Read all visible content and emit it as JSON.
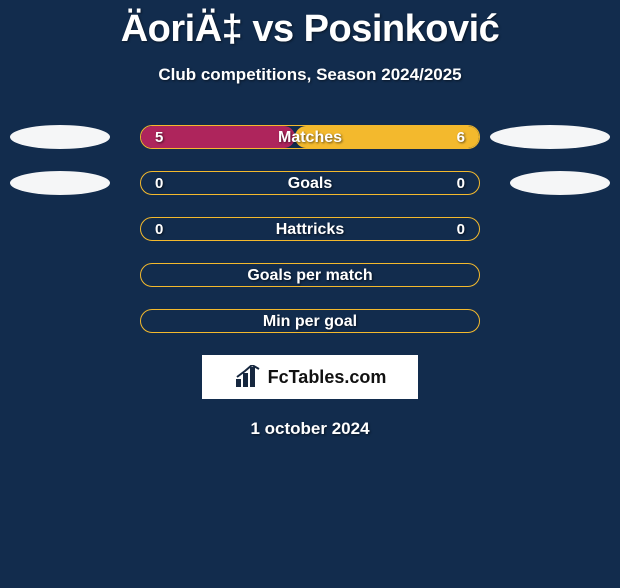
{
  "title": "ÄoriÄ‡ vs Posinković",
  "subtitle": "Club competitions, Season 2024/2025",
  "date_text": "1 october 2024",
  "logo_text": "FcTables.com",
  "colors": {
    "background": "#122c4d",
    "pill_border": "#f3b92d",
    "left_fill": "#ae255c",
    "right_fill": "#f3b92d",
    "ellipse": "#f5f6f7",
    "text": "#ffffff",
    "logo_bg": "#ffffff",
    "logo_text": "#111111",
    "logo_bars": "#16273f"
  },
  "ellipse_base_width": 100,
  "rows": [
    {
      "label": "Matches",
      "left_val": "5",
      "right_val": "6",
      "left_num": 5,
      "right_num": 6,
      "show_values": true,
      "show_ellipses": true,
      "left_ellipse_scale": 1.0,
      "right_ellipse_scale": 1.2
    },
    {
      "label": "Goals",
      "left_val": "0",
      "right_val": "0",
      "left_num": 0,
      "right_num": 0,
      "show_values": true,
      "show_ellipses": true,
      "left_ellipse_scale": 1.0,
      "right_ellipse_scale": 1.0
    },
    {
      "label": "Hattricks",
      "left_val": "0",
      "right_val": "0",
      "left_num": 0,
      "right_num": 0,
      "show_values": true,
      "show_ellipses": false,
      "left_ellipse_scale": 0,
      "right_ellipse_scale": 0
    },
    {
      "label": "Goals per match",
      "left_val": "",
      "right_val": "",
      "left_num": 0,
      "right_num": 0,
      "show_values": false,
      "show_ellipses": false,
      "left_ellipse_scale": 0,
      "right_ellipse_scale": 0
    },
    {
      "label": "Min per goal",
      "left_val": "",
      "right_val": "",
      "left_num": 0,
      "right_num": 0,
      "show_values": false,
      "show_ellipses": false,
      "left_ellipse_scale": 0,
      "right_ellipse_scale": 0
    }
  ]
}
